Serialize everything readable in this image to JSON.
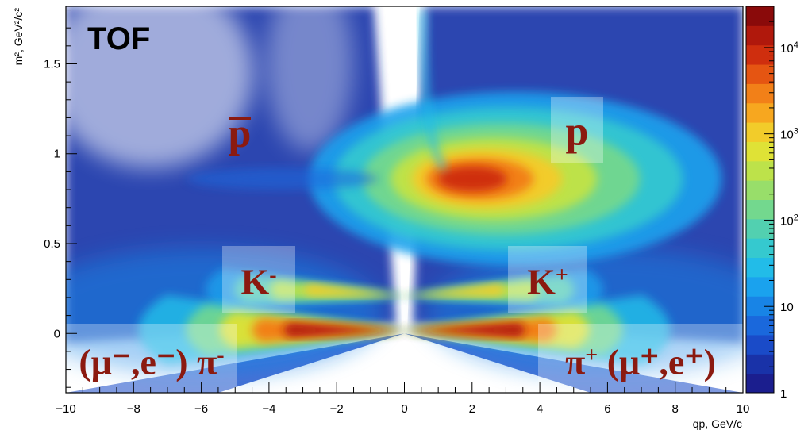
{
  "chart_data": {
    "type": "heatmap",
    "tag": "TOF",
    "xlabel": "qp, GeV/c",
    "ylabel": "m², GeV²/c²",
    "xlim": [
      -10,
      10
    ],
    "ylim": [
      -0.33,
      1.82
    ],
    "z_scale": "log",
    "zlim": [
      1,
      30000
    ],
    "x_ticks": [
      -10,
      -8,
      -6,
      -4,
      -2,
      0,
      2,
      4,
      6,
      8,
      10
    ],
    "y_ticks": [
      0,
      0.5,
      1,
      1.5
    ],
    "colorbar_ticks": [
      {
        "value": 1,
        "label": "1"
      },
      {
        "value": 10,
        "label": "10"
      },
      {
        "value": 100,
        "label": "10",
        "exp": "2"
      },
      {
        "value": 1000,
        "label": "10",
        "exp": "3"
      },
      {
        "value": 10000,
        "label": "10",
        "exp": "4"
      }
    ],
    "colors": [
      "#1b1e8e",
      "#1932a8",
      "#1a4bc8",
      "#1a68dc",
      "#1884e6",
      "#1aa2ee",
      "#22bce8",
      "#35c9cf",
      "#52d0b0",
      "#73d88e",
      "#98de6a",
      "#bde24a",
      "#dfe236",
      "#f2cc2a",
      "#f7a71f",
      "#f28018",
      "#e55512",
      "#cf2e0e",
      "#b0180c",
      "#8a0a0a"
    ],
    "bands": [
      {
        "label": "p",
        "charge": 1,
        "m2": 0.88
      },
      {
        "label": "p",
        "overline": true,
        "charge": -1,
        "m2": 0.88
      },
      {
        "label": "K",
        "sup": "+",
        "charge": 1,
        "m2": 0.244
      },
      {
        "label": "K",
        "sup": "-",
        "charge": -1,
        "m2": 0.244
      },
      {
        "label": "π",
        "sup": "+",
        "suffix": " (μ⁺,e⁺)",
        "charge": 1,
        "m2": 0.0195
      },
      {
        "label": "(μ⁻,e⁻) π",
        "sup": "-",
        "charge": -1,
        "m2": 0.0195
      }
    ]
  }
}
